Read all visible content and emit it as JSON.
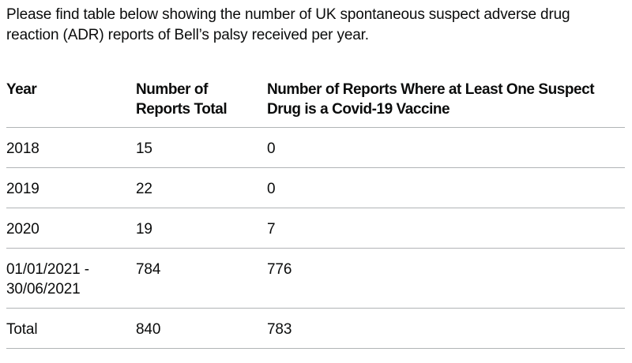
{
  "intro": {
    "text": "Please find table below showing the number of UK spontaneous suspect adverse drug\nreaction (ADR) reports of Bell’s palsy received per year."
  },
  "table": {
    "columns": [
      "Year",
      "Number of\nReports Total",
      "Number of Reports Where at Least One Suspect\nDrug is a Covid-19 Vaccine"
    ],
    "rows": [
      {
        "year": "2018",
        "total": "15",
        "covid": "0"
      },
      {
        "year": "2019",
        "total": "22",
        "covid": "0"
      },
      {
        "year": "2020",
        "total": "19",
        "covid": "7"
      },
      {
        "year": "01/01/2021 -\n30/06/2021",
        "total": "784",
        "covid": "776"
      },
      {
        "year": "Total",
        "total": "840",
        "covid": "783"
      }
    ]
  },
  "colors": {
    "text": "#0b0c0c",
    "border": "#b1b4b6",
    "background": "#ffffff"
  }
}
